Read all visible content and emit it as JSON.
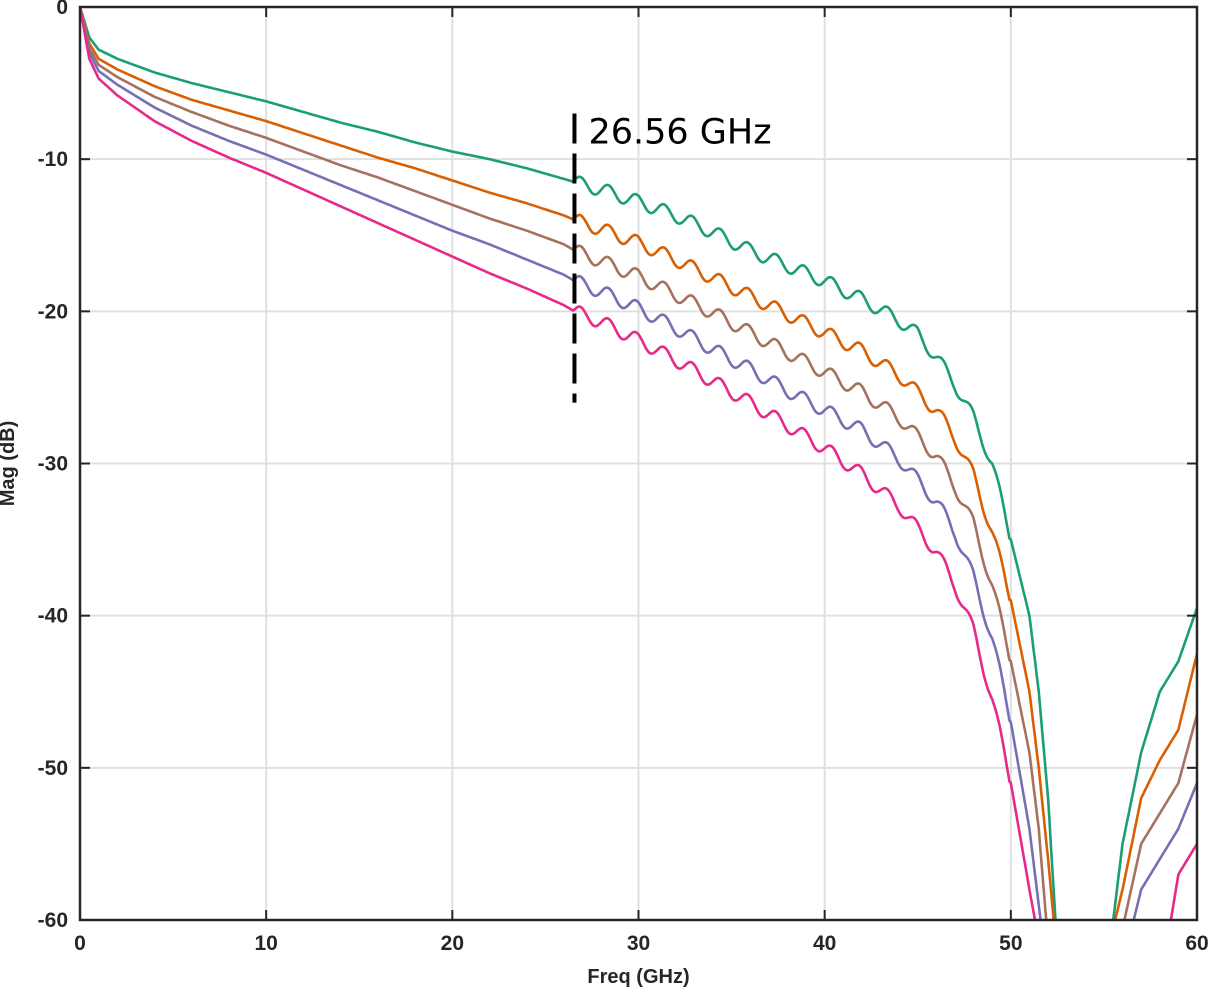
{
  "chart_data": {
    "type": "line",
    "xlabel": "Freq (GHz)",
    "ylabel": "Mag (dB)",
    "xlim": [
      0,
      60
    ],
    "ylim": [
      -60,
      0
    ],
    "xticks": [
      "0",
      "10",
      "20",
      "30",
      "40",
      "50",
      "60"
    ],
    "yticks": [
      "0",
      "-10",
      "-20",
      "-30",
      "-40",
      "-50",
      "-60"
    ],
    "grid": true,
    "series": [
      {
        "color": "#1b9e77",
        "points": [
          [
            0,
            0
          ],
          [
            0.5,
            -2
          ],
          [
            1,
            -2.8
          ],
          [
            2,
            -3.4
          ],
          [
            4,
            -4.3
          ],
          [
            6,
            -5.0
          ],
          [
            8,
            -5.6
          ],
          [
            10,
            -6.2
          ],
          [
            12,
            -6.9
          ],
          [
            14,
            -7.6
          ],
          [
            16,
            -8.2
          ],
          [
            18,
            -8.9
          ],
          [
            20,
            -9.5
          ],
          [
            22,
            -10.0
          ],
          [
            24,
            -10.6
          ],
          [
            26,
            -11.3
          ],
          [
            26.56,
            -11.5
          ],
          [
            28,
            -12.0
          ],
          [
            30,
            -12.8
          ],
          [
            32,
            -13.7
          ],
          [
            34,
            -14.8
          ],
          [
            36,
            -16.0
          ],
          [
            38,
            -17.0
          ],
          [
            40,
            -18.0
          ],
          [
            42,
            -19.2
          ],
          [
            44,
            -20.6
          ],
          [
            45,
            -21.5
          ],
          [
            46,
            -23.0
          ],
          [
            47,
            -24.8
          ],
          [
            48,
            -27.0
          ],
          [
            49,
            -30.0
          ],
          [
            50,
            -35.0
          ],
          [
            51,
            -40.0
          ],
          [
            51.5,
            -45.0
          ],
          [
            52,
            -52.0
          ],
          [
            52.4,
            -60.0
          ]
        ],
        "tail": [
          [
            55.5,
            -60.0
          ],
          [
            56,
            -55.0
          ],
          [
            57,
            -49.0
          ],
          [
            58,
            -45.0
          ],
          [
            59,
            -43.0
          ],
          [
            60,
            -39.5
          ]
        ]
      },
      {
        "color": "#d95f02",
        "points": [
          [
            0,
            0
          ],
          [
            0.5,
            -2.4
          ],
          [
            1,
            -3.4
          ],
          [
            2,
            -4.1
          ],
          [
            4,
            -5.2
          ],
          [
            6,
            -6.1
          ],
          [
            8,
            -6.8
          ],
          [
            10,
            -7.5
          ],
          [
            12,
            -8.3
          ],
          [
            14,
            -9.1
          ],
          [
            16,
            -9.9
          ],
          [
            18,
            -10.6
          ],
          [
            20,
            -11.4
          ],
          [
            22,
            -12.2
          ],
          [
            24,
            -12.9
          ],
          [
            26,
            -13.7
          ],
          [
            26.56,
            -14.0
          ],
          [
            28,
            -14.6
          ],
          [
            30,
            -15.5
          ],
          [
            32,
            -16.6
          ],
          [
            34,
            -17.8
          ],
          [
            36,
            -19.0
          ],
          [
            38,
            -20.2
          ],
          [
            40,
            -21.4
          ],
          [
            42,
            -22.6
          ],
          [
            44,
            -24.2
          ],
          [
            46,
            -26.5
          ],
          [
            47,
            -28.3
          ],
          [
            48,
            -30.8
          ],
          [
            49,
            -34.5
          ],
          [
            50,
            -39.0
          ],
          [
            51,
            -45.0
          ],
          [
            51.5,
            -50.0
          ],
          [
            52,
            -56.0
          ],
          [
            52.3,
            -60.0
          ]
        ],
        "tail": [
          [
            55.6,
            -60.0
          ],
          [
            56,
            -58.0
          ],
          [
            57,
            -52.0
          ],
          [
            58,
            -49.5
          ],
          [
            59,
            -47.5
          ],
          [
            60,
            -42.5
          ]
        ]
      },
      {
        "color": "#a6725f",
        "points": [
          [
            0,
            0
          ],
          [
            0.5,
            -2.7
          ],
          [
            1,
            -3.8
          ],
          [
            2,
            -4.6
          ],
          [
            4,
            -5.9
          ],
          [
            6,
            -6.9
          ],
          [
            8,
            -7.8
          ],
          [
            10,
            -8.6
          ],
          [
            12,
            -9.5
          ],
          [
            14,
            -10.4
          ],
          [
            16,
            -11.2
          ],
          [
            18,
            -12.1
          ],
          [
            20,
            -13.0
          ],
          [
            22,
            -13.9
          ],
          [
            24,
            -14.7
          ],
          [
            26,
            -15.6
          ],
          [
            26.56,
            -16.0
          ],
          [
            28,
            -16.7
          ],
          [
            30,
            -17.7
          ],
          [
            32,
            -18.9
          ],
          [
            34,
            -20.1
          ],
          [
            36,
            -21.4
          ],
          [
            38,
            -22.7
          ],
          [
            40,
            -24.0
          ],
          [
            42,
            -25.3
          ],
          [
            44,
            -27.0
          ],
          [
            46,
            -29.5
          ],
          [
            47,
            -31.5
          ],
          [
            48,
            -34.0
          ],
          [
            49,
            -38.0
          ],
          [
            50,
            -43.0
          ],
          [
            51,
            -49.0
          ],
          [
            51.5,
            -54.0
          ],
          [
            51.9,
            -60.0
          ]
        ],
        "tail": [
          [
            56.1,
            -60.0
          ],
          [
            57,
            -55.0
          ],
          [
            58,
            -53.0
          ],
          [
            59,
            -51.0
          ],
          [
            60,
            -46.5
          ]
        ]
      },
      {
        "color": "#7570b3",
        "points": [
          [
            0,
            0
          ],
          [
            0.5,
            -3.0
          ],
          [
            1,
            -4.2
          ],
          [
            2,
            -5.1
          ],
          [
            4,
            -6.6
          ],
          [
            6,
            -7.8
          ],
          [
            8,
            -8.8
          ],
          [
            10,
            -9.7
          ],
          [
            12,
            -10.7
          ],
          [
            14,
            -11.7
          ],
          [
            16,
            -12.7
          ],
          [
            18,
            -13.7
          ],
          [
            20,
            -14.7
          ],
          [
            22,
            -15.6
          ],
          [
            24,
            -16.6
          ],
          [
            26,
            -17.6
          ],
          [
            26.56,
            -18.0
          ],
          [
            28,
            -18.7
          ],
          [
            30,
            -19.8
          ],
          [
            32,
            -21.1
          ],
          [
            34,
            -22.5
          ],
          [
            36,
            -23.8
          ],
          [
            38,
            -25.2
          ],
          [
            40,
            -26.5
          ],
          [
            42,
            -27.8
          ],
          [
            44,
            -29.7
          ],
          [
            46,
            -32.5
          ],
          [
            47,
            -34.5
          ],
          [
            48,
            -37.5
          ],
          [
            49,
            -41.5
          ],
          [
            50,
            -47.0
          ],
          [
            51,
            -54.0
          ],
          [
            51.6,
            -60.0
          ]
        ],
        "tail": [
          [
            56.6,
            -60.0
          ],
          [
            57,
            -58.0
          ],
          [
            58,
            -56.0
          ],
          [
            59,
            -54.0
          ],
          [
            60,
            -51.0
          ]
        ]
      },
      {
        "color": "#e7298a",
        "points": [
          [
            0,
            0
          ],
          [
            0.5,
            -3.4
          ],
          [
            1,
            -4.7
          ],
          [
            2,
            -5.8
          ],
          [
            4,
            -7.5
          ],
          [
            6,
            -8.8
          ],
          [
            8,
            -9.9
          ],
          [
            10,
            -10.9
          ],
          [
            12,
            -12.0
          ],
          [
            14,
            -13.1
          ],
          [
            16,
            -14.2
          ],
          [
            18,
            -15.3
          ],
          [
            20,
            -16.4
          ],
          [
            22,
            -17.5
          ],
          [
            24,
            -18.5
          ],
          [
            26,
            -19.6
          ],
          [
            26.56,
            -20.0
          ],
          [
            28,
            -20.7
          ],
          [
            30,
            -21.9
          ],
          [
            32,
            -23.2
          ],
          [
            34,
            -24.6
          ],
          [
            36,
            -26.0
          ],
          [
            38,
            -27.5
          ],
          [
            40,
            -29.0
          ],
          [
            42,
            -30.7
          ],
          [
            44,
            -32.8
          ],
          [
            46,
            -35.8
          ],
          [
            47,
            -38.0
          ],
          [
            48,
            -41.0
          ],
          [
            49,
            -45.5
          ],
          [
            50,
            -51.0
          ],
          [
            51,
            -58.0
          ],
          [
            51.3,
            -60.0
          ]
        ],
        "tail": [
          [
            58.6,
            -60.0
          ],
          [
            59,
            -57.0
          ],
          [
            60,
            -55.0
          ]
        ]
      }
    ],
    "annotations": [
      {
        "type": "vline",
        "x": 26.56,
        "y_from": -7,
        "y_to": -26,
        "style": "dashed",
        "color": "#000000",
        "label": "26.56 GHz"
      }
    ]
  }
}
